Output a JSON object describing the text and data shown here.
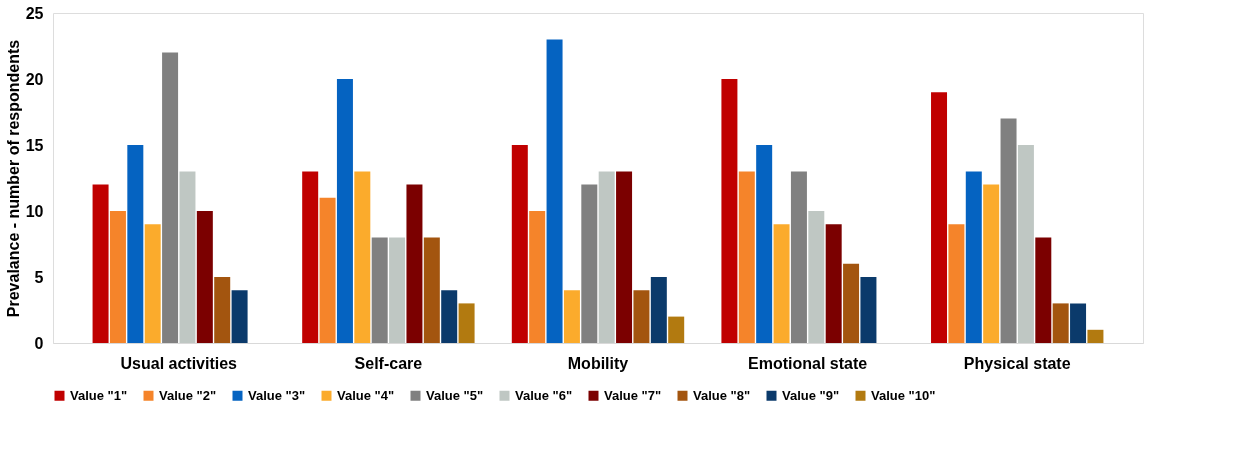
{
  "chart_data": {
    "type": "bar",
    "ylabel": "Prevalance - number of respondents",
    "categories": [
      "Usual activities",
      "Self-care",
      "Mobility",
      "Emotional state",
      "Physical state"
    ],
    "series": [
      {
        "name": "Value \"1\"",
        "color": "#c00000",
        "values": [
          12,
          13,
          15,
          20,
          19
        ]
      },
      {
        "name": "Value \"2\"",
        "color": "#f5842a",
        "values": [
          10,
          11,
          10,
          13,
          9
        ]
      },
      {
        "name": "Value \"3\"",
        "color": "#0563c1",
        "values": [
          15,
          20,
          23,
          15,
          13
        ]
      },
      {
        "name": "Value \"4\"",
        "color": "#fbab2c",
        "values": [
          9,
          13,
          4,
          9,
          12
        ]
      },
      {
        "name": "Value \"5\"",
        "color": "#808080",
        "values": [
          22,
          8,
          12,
          13,
          17
        ]
      },
      {
        "name": "Value \"6\"",
        "color": "#bfc7c3",
        "values": [
          13,
          8,
          13,
          10,
          15
        ]
      },
      {
        "name": "Value \"7\"",
        "color": "#7b0000",
        "values": [
          10,
          12,
          13,
          9,
          8
        ]
      },
      {
        "name": "Value \"8\"",
        "color": "#a3550f",
        "values": [
          5,
          8,
          4,
          6,
          3
        ]
      },
      {
        "name": "Value \"9\"",
        "color": "#0b3a6b",
        "values": [
          4,
          4,
          5,
          5,
          3
        ]
      },
      {
        "name": "Value \"10\"",
        "color": "#b27a10",
        "values": [
          null,
          3,
          2,
          null,
          1
        ]
      }
    ],
    "ylim": [
      0,
      25
    ],
    "yticks": [
      0,
      5,
      10,
      15,
      20,
      25
    ],
    "grid": false,
    "legend": "bottom"
  }
}
